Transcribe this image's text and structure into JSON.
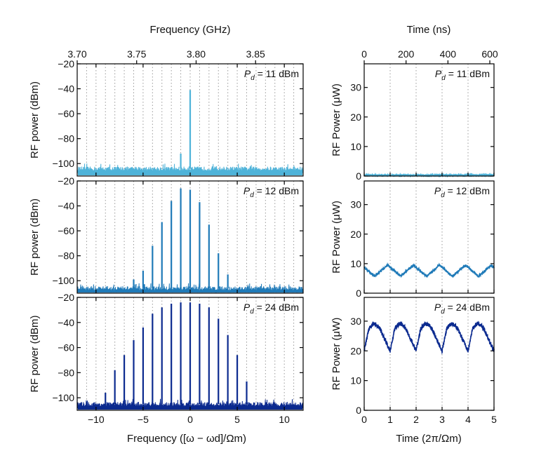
{
  "colors": {
    "panel_11dBm": "#4fb3d9",
    "panel_12dBm": "#1f7ab8",
    "panel_24dBm": "#0b2a8f",
    "grid": "#9a9a9a",
    "axis": "#000000"
  },
  "chart_data": [
    {
      "type": "line",
      "id": "spectra",
      "title": "",
      "top_axis": {
        "label": "Frequency (GHz)",
        "ticks": [
          "3.70",
          "3.75",
          "3.80",
          "3.85"
        ],
        "tick_values": [
          3.7,
          3.75,
          3.8,
          3.85
        ],
        "range": [
          3.7,
          3.89
        ]
      },
      "xlabel": "Frequency ([ω − ωd]/Ωm)",
      "xlim": [
        -12,
        12
      ],
      "xticks": [
        -10,
        -5,
        0,
        5,
        10
      ],
      "xtick_labels": [
        "−10",
        "−5",
        "0",
        "5",
        "10"
      ],
      "ylabel": "RF power (dBm)",
      "ylim": [
        -110,
        -20
      ],
      "yticks": [
        -100,
        -80,
        -60,
        -40,
        -20
      ],
      "ytick_labels": [
        "−100",
        "−80",
        "−60",
        "−40",
        "−20"
      ],
      "grid": "vertical dotted at integer harmonics",
      "panels": [
        {
          "label": "P_d = 11 dBm",
          "label_parts": [
            "P",
            "d",
            " = 11 dBm"
          ],
          "noise_floor": -104,
          "harmonics": [
            -1,
            0
          ],
          "peaks": [
            -92,
            -41
          ]
        },
        {
          "label": "P_d = 12 dBm",
          "label_parts": [
            "P",
            "d",
            " = 12 dBm"
          ],
          "noise_floor": -106,
          "harmonics": [
            -6,
            -5,
            -4,
            -3,
            -2,
            -1,
            0,
            1,
            2,
            3,
            4
          ],
          "peaks": [
            -99,
            -92,
            -72,
            -53,
            -36,
            -26,
            -27,
            -37,
            -55,
            -78,
            -95
          ]
        },
        {
          "label": "P_d = 24 dBm",
          "label_parts": [
            "P",
            "d",
            " = 24 dBm"
          ],
          "noise_floor": -105,
          "harmonics": [
            -9,
            -8,
            -7,
            -6,
            -5,
            -4,
            -3,
            -2,
            -1,
            0,
            1,
            2,
            3,
            4,
            5,
            6
          ],
          "peaks": [
            -96,
            -78,
            -66,
            -54,
            -44,
            -33,
            -28,
            -25,
            -24,
            -24,
            -25,
            -28,
            -37,
            -50,
            -66,
            -87
          ]
        }
      ]
    },
    {
      "type": "line",
      "id": "time_traces",
      "title": "",
      "top_axis": {
        "label": "Time (ns)",
        "ticks": [
          "0",
          "200",
          "400",
          "600"
        ],
        "tick_values": [
          0,
          200,
          400,
          600
        ],
        "range": [
          0,
          620
        ]
      },
      "xlabel": "Time (2π/Ωm)",
      "xlim": [
        0,
        5
      ],
      "xticks": [
        0,
        1,
        2,
        3,
        4,
        5
      ],
      "xtick_labels": [
        "0",
        "1",
        "2",
        "3",
        "4",
        "5"
      ],
      "ylabel": "RF Power (μW)",
      "ylim": [
        0,
        38
      ],
      "yticks": [
        0,
        10,
        20,
        30
      ],
      "ytick_labels": [
        "0",
        "10",
        "20",
        "30"
      ],
      "grid": "vertical dotted at integer periods",
      "panels": [
        {
          "label": "P_d = 11 dBm",
          "label_parts": [
            "P",
            "d",
            " = 11 dBm"
          ],
          "mean": 0.3,
          "amplitude": 0.1,
          "shape": "flat"
        },
        {
          "label": "P_d = 12 dBm",
          "label_parts": [
            "P",
            "d",
            " = 12 dBm"
          ],
          "mean": 7.6,
          "amplitude": 1.9,
          "shape": "triangle"
        },
        {
          "label": "P_d = 24 dBm",
          "label_parts": [
            "P",
            "d",
            " = 24 dBm"
          ],
          "min": 20,
          "max": 29,
          "shape": "sawtooth-plateau"
        }
      ]
    }
  ]
}
